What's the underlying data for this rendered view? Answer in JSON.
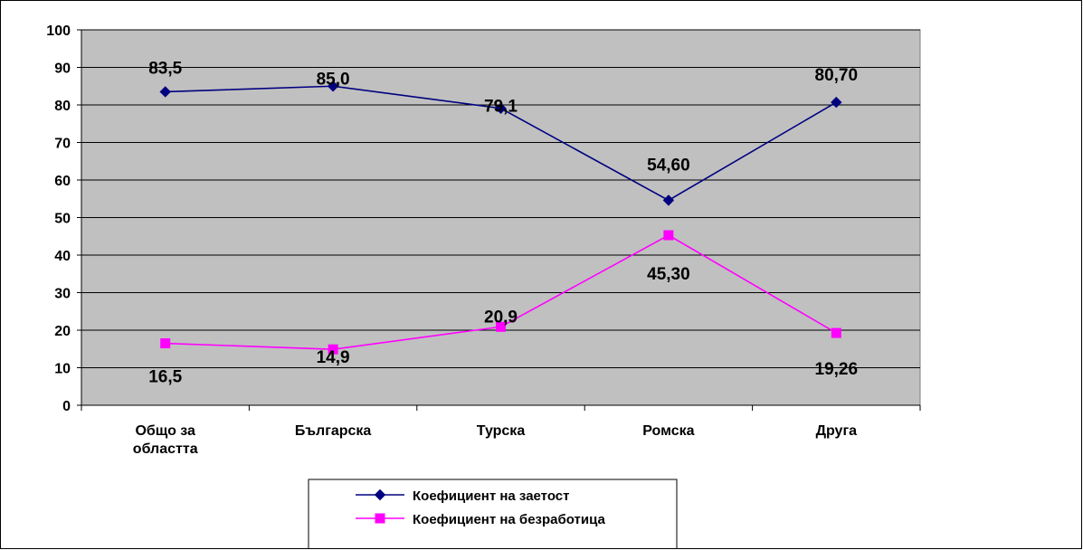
{
  "chart_data": {
    "type": "line",
    "categories": [
      [
        "Общо за",
        "областта"
      ],
      [
        "Българска"
      ],
      [
        "Турска"
      ],
      [
        "Ромска"
      ],
      [
        "Друга"
      ]
    ],
    "ylim": [
      0,
      100
    ],
    "yticks": [
      0,
      10,
      20,
      30,
      40,
      50,
      60,
      70,
      80,
      90,
      100
    ],
    "grid": true,
    "plot_background": "#c0c0c0",
    "legend_position": "bottom",
    "series": [
      {
        "name": "Коефициент на заетост",
        "values": [
          83.5,
          85.0,
          79.1,
          54.6,
          80.7
        ],
        "labels": [
          "83,5",
          "85,0",
          "79,1",
          "54,60",
          "80,70"
        ],
        "color": "#000080",
        "marker": "diamond"
      },
      {
        "name": "Коефициент на безработица",
        "values": [
          16.5,
          14.9,
          20.9,
          45.3,
          19.26
        ],
        "labels": [
          "16,5",
          "14,9",
          "20,9",
          "45,30",
          "19,26"
        ],
        "color": "#ff00ff",
        "marker": "square"
      }
    ]
  }
}
